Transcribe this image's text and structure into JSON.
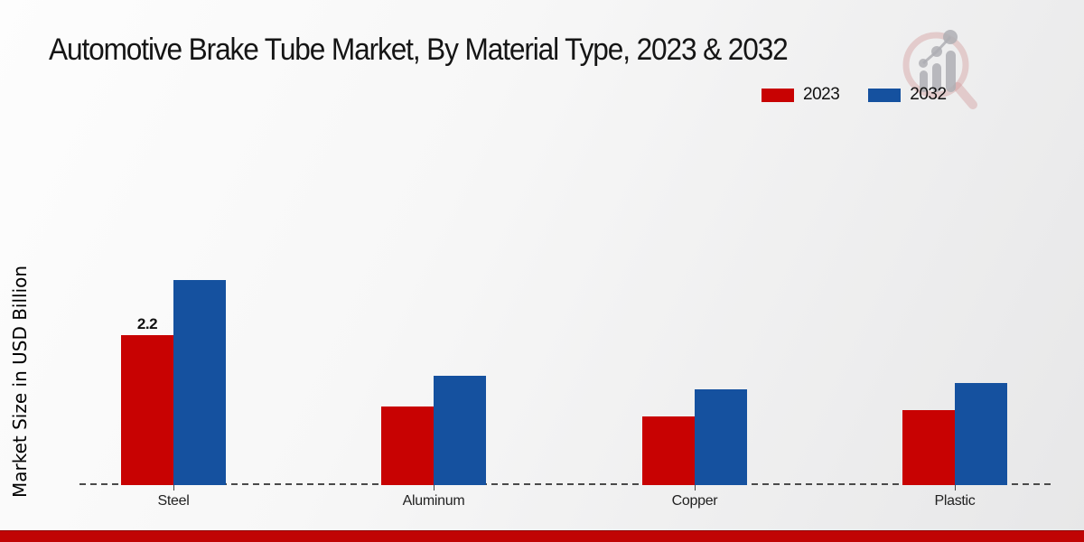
{
  "title": "Automotive Brake Tube Market, By Material Type, 2023 & 2032",
  "y_axis_label": "Market Size in USD Billion",
  "legend": {
    "items": [
      {
        "label": "2023",
        "color": "#c80202"
      },
      {
        "label": "2032",
        "color": "#15519f"
      }
    ]
  },
  "chart_data": {
    "type": "bar",
    "title": "Automotive Brake Tube Market, By Material Type, 2023 & 2032",
    "categories": [
      "Steel",
      "Aluminum",
      "Copper",
      "Plastic"
    ],
    "series": [
      {
        "name": "2023",
        "color": "#c80202",
        "values": [
          2.2,
          1.15,
          1.0,
          1.1
        ]
      },
      {
        "name": "2032",
        "color": "#15519f",
        "values": [
          3.0,
          1.6,
          1.4,
          1.5
        ]
      }
    ],
    "annotations": [
      {
        "category_index": 0,
        "series_index": 0,
        "text": "2.2"
      }
    ],
    "xlabel": "",
    "ylabel": "Market Size in USD Billion",
    "ylim": [
      0,
      3.3
    ],
    "grid": false,
    "y_axis_ticks_visible": false,
    "legend_position": "top-right",
    "baseline_style": "dashed"
  },
  "colors": {
    "series_2023": "#c80202",
    "series_2032": "#15519f",
    "footer_bar": "#c00404",
    "axis_line": "#4a4a4a"
  },
  "logo": {
    "name": "magnifier-growth-chart-logo"
  }
}
